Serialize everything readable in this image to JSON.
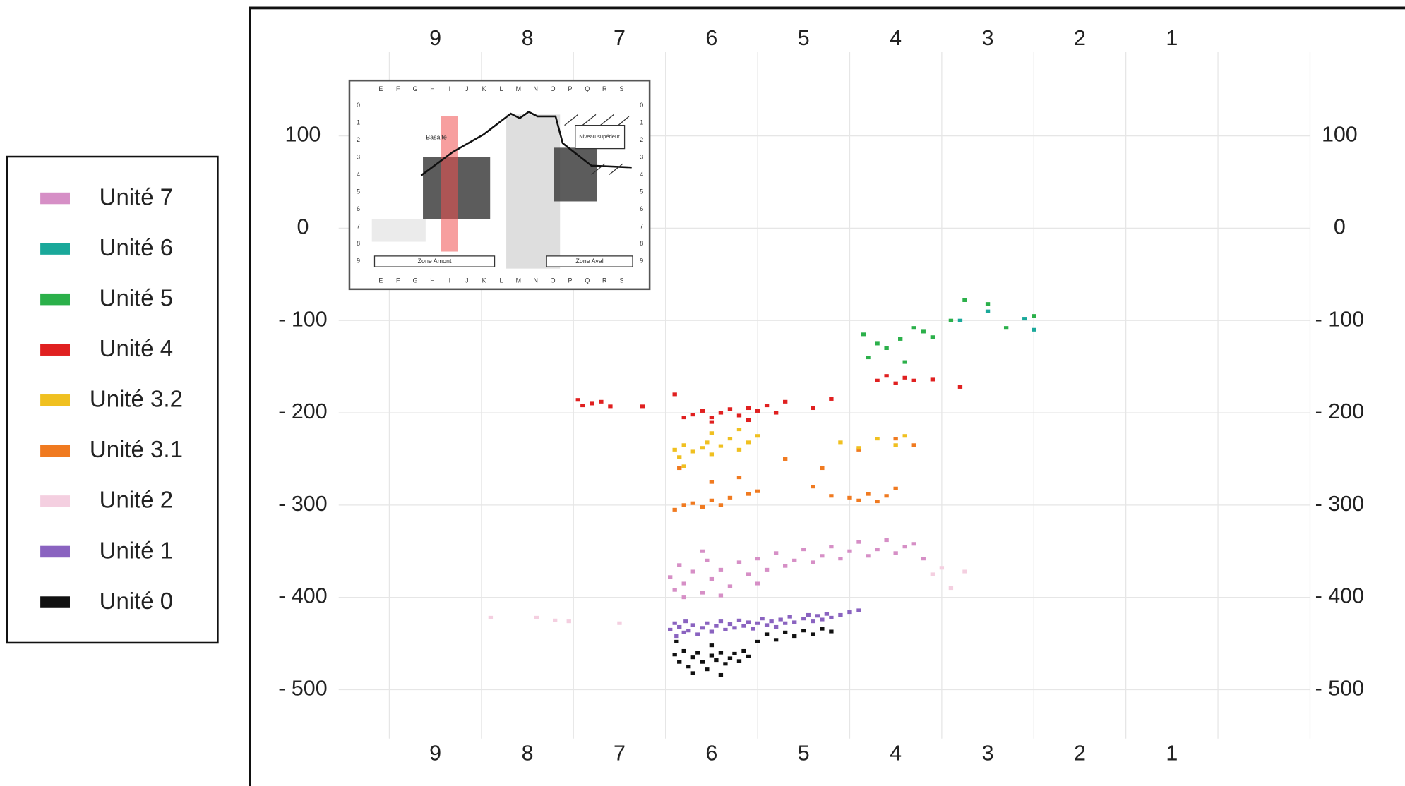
{
  "chart_data": {
    "type": "scatter",
    "xlim": [
      10.05,
      -0.5
    ],
    "ylim": [
      -553,
      191
    ],
    "xticks": [
      9,
      8,
      7,
      6,
      5,
      4,
      3,
      2,
      1
    ],
    "x_gridlines": [
      9.5,
      8.5,
      7.5,
      6.5,
      5.5,
      4.5,
      3.5,
      2.5,
      1.5,
      0.5,
      -0.5
    ],
    "yticks": [
      100,
      0,
      {
        "value": -100,
        "label": "- 100"
      },
      {
        "value": -200,
        "label": "- 200"
      },
      {
        "value": -300,
        "label": "- 300"
      },
      {
        "value": -400,
        "label": "- 400"
      },
      {
        "value": -500,
        "label": "- 500"
      }
    ],
    "grid": true,
    "legend_position": "left",
    "series": [
      {
        "name": "Unité 7",
        "color": "#d68fc6",
        "x": [
          6.45,
          6.4,
          6.35,
          6.3,
          6.2,
          6.1,
          6.05,
          6.0,
          5.9,
          5.8,
          5.7,
          5.6,
          5.5,
          5.4,
          5.3,
          5.2,
          5.1,
          5.0,
          4.9,
          4.8,
          4.7,
          4.6,
          4.5,
          4.4,
          4.3,
          4.2,
          4.1,
          4.0,
          3.9,
          3.8,
          3.7,
          6.3,
          6.1,
          5.9,
          5.5
        ],
        "y": [
          -378,
          -392,
          -365,
          -385,
          -372,
          -395,
          -360,
          -380,
          -370,
          -388,
          -362,
          -375,
          -358,
          -370,
          -352,
          -366,
          -360,
          -348,
          -362,
          -355,
          -345,
          -358,
          -350,
          -340,
          -355,
          -348,
          -338,
          -352,
          -345,
          -342,
          -358,
          -400,
          -350,
          -398,
          -385
        ]
      },
      {
        "name": "Unité 6",
        "color": "#1aa89a",
        "x": [
          3.3,
          3.0,
          2.6,
          2.5
        ],
        "y": [
          -100,
          -90,
          -98,
          -110
        ]
      },
      {
        "name": "Unité 5",
        "color": "#2bb04a",
        "x": [
          4.35,
          4.2,
          4.1,
          3.95,
          3.8,
          3.7,
          3.6,
          3.4,
          3.25,
          3.0,
          2.8,
          2.5,
          4.3,
          3.9
        ],
        "y": [
          -115,
          -125,
          -130,
          -120,
          -108,
          -112,
          -118,
          -100,
          -78,
          -82,
          -108,
          -95,
          -140,
          -145
        ]
      },
      {
        "name": "Unité 4",
        "color": "#e02020",
        "x": [
          7.45,
          7.4,
          7.3,
          7.2,
          7.1,
          6.75,
          6.3,
          6.2,
          6.1,
          6.0,
          5.9,
          5.8,
          5.7,
          5.6,
          5.5,
          5.4,
          5.3,
          5.2,
          6.4,
          6.0,
          5.6,
          4.9,
          4.7,
          4.2,
          4.1,
          4.0,
          3.9,
          3.8,
          3.6,
          3.3
        ],
        "y": [
          -186,
          -192,
          -190,
          -188,
          -193,
          -193,
          -205,
          -202,
          -198,
          -205,
          -200,
          -196,
          -203,
          -195,
          -198,
          -192,
          -200,
          -188,
          -180,
          -210,
          -208,
          -195,
          -185,
          -165,
          -160,
          -168,
          -162,
          -165,
          -164,
          -172
        ]
      },
      {
        "name": "Unité 3.2",
        "color": "#f0c020",
        "x": [
          6.4,
          6.35,
          6.3,
          6.2,
          6.1,
          6.05,
          6.0,
          5.9,
          5.8,
          5.7,
          5.6,
          5.5,
          6.3,
          6.0,
          5.7,
          4.6,
          4.4,
          4.2,
          4.0,
          3.9
        ],
        "y": [
          -240,
          -248,
          -235,
          -242,
          -238,
          -232,
          -245,
          -236,
          -228,
          -240,
          -232,
          -225,
          -258,
          -222,
          -218,
          -232,
          -238,
          -228,
          -235,
          -225
        ]
      },
      {
        "name": "Unité 3.1",
        "color": "#f07a20",
        "x": [
          6.4,
          6.3,
          6.2,
          6.1,
          6.0,
          5.9,
          5.8,
          5.6,
          5.5,
          6.35,
          6.0,
          5.7,
          4.9,
          4.7,
          4.5,
          4.4,
          4.3,
          4.2,
          4.1,
          4.0,
          5.2,
          4.8,
          4.4,
          4.0,
          3.8
        ],
        "y": [
          -305,
          -300,
          -298,
          -302,
          -295,
          -300,
          -292,
          -288,
          -285,
          -260,
          -275,
          -270,
          -280,
          -290,
          -292,
          -295,
          -288,
          -296,
          -290,
          -282,
          -250,
          -260,
          -240,
          -228,
          -235
        ]
      },
      {
        "name": "Unité 2",
        "color": "#f4cfe0",
        "x": [
          8.4,
          7.9,
          7.7,
          7.55,
          7.0,
          3.6,
          3.4,
          3.5,
          3.25
        ],
        "y": [
          -422,
          -422,
          -425,
          -426,
          -428,
          -375,
          -390,
          -368,
          -372
        ]
      },
      {
        "name": "Unité 1",
        "color": "#8a63c0",
        "x": [
          6.45,
          6.4,
          6.38,
          6.35,
          6.3,
          6.28,
          6.25,
          6.2,
          6.15,
          6.1,
          6.05,
          6.0,
          5.95,
          5.9,
          5.85,
          5.8,
          5.75,
          5.7,
          5.65,
          5.6,
          5.55,
          5.5,
          5.45,
          5.4,
          5.35,
          5.3,
          5.25,
          5.2,
          5.15,
          5.1,
          5.0,
          4.95,
          4.9,
          4.85,
          4.8,
          4.75,
          4.7,
          4.6,
          4.5,
          4.4
        ],
        "y": [
          -435,
          -428,
          -442,
          -432,
          -438,
          -426,
          -436,
          -430,
          -440,
          -433,
          -428,
          -437,
          -431,
          -426,
          -435,
          -429,
          -433,
          -425,
          -431,
          -427,
          -434,
          -428,
          -423,
          -430,
          -426,
          -432,
          -424,
          -428,
          -421,
          -427,
          -423,
          -419,
          -426,
          -420,
          -424,
          -418,
          -422,
          -419,
          -416,
          -414
        ]
      },
      {
        "name": "Unité 0",
        "color": "#111111",
        "x": [
          6.4,
          6.35,
          6.3,
          6.25,
          6.2,
          6.15,
          6.1,
          6.05,
          6.0,
          5.95,
          5.9,
          5.85,
          5.8,
          5.75,
          5.7,
          5.65,
          5.6,
          6.38,
          6.0,
          5.5,
          5.4,
          5.3,
          5.2,
          5.1,
          5.0,
          4.9,
          4.8,
          4.7,
          6.2,
          5.9
        ],
        "y": [
          -462,
          -470,
          -458,
          -475,
          -465,
          -460,
          -470,
          -478,
          -463,
          -468,
          -460,
          -472,
          -466,
          -461,
          -469,
          -458,
          -464,
          -448,
          -452,
          -448,
          -440,
          -446,
          -438,
          -442,
          -436,
          -440,
          -434,
          -437,
          -482,
          -484
        ]
      }
    ]
  },
  "inset": {
    "columns": [
      "E",
      "F",
      "G",
      "H",
      "I",
      "J",
      "K",
      "L",
      "M",
      "N",
      "O",
      "P",
      "Q",
      "R",
      "S"
    ],
    "rows": [
      "0",
      "1",
      "2",
      "3",
      "4",
      "5",
      "6",
      "7",
      "8",
      "9"
    ],
    "basalt": "Basalte",
    "upper_level": "Niveau supérieur",
    "upstream": "Zone Amont",
    "downstream": "Zone Aval"
  }
}
